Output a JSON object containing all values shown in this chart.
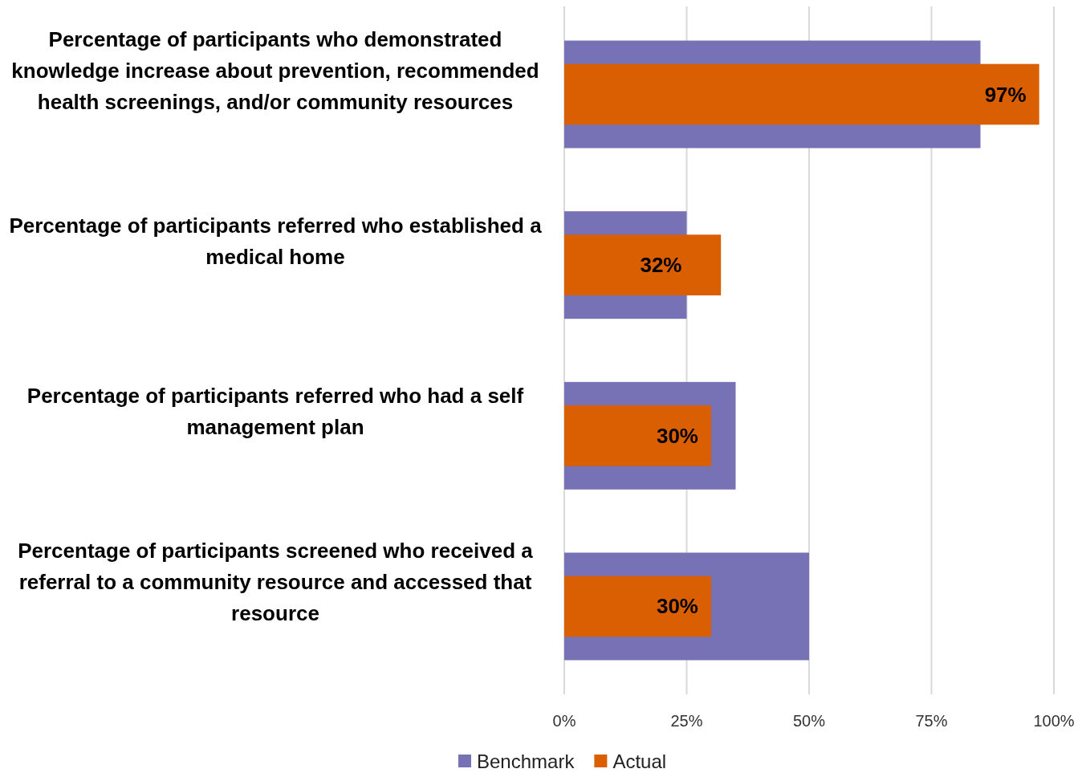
{
  "chart_data": {
    "type": "bar",
    "orientation": "horizontal",
    "categories": [
      "Percentage of participants who demonstrated knowledge increase about prevention, recommended health screenings, and/or community resources",
      "Percentage of participants referred who established a medical home",
      "Percentage of participants referred who had a self management plan",
      "Percentage of participants screened who received a referral to a community resource and accessed that resource"
    ],
    "series": [
      {
        "name": "Benchmark",
        "color": "#7772b5",
        "values": [
          85,
          25,
          35,
          50
        ]
      },
      {
        "name": "Actual",
        "color": "#d95f02",
        "values": [
          97,
          32,
          30,
          30
        ],
        "value_labels": [
          "97%",
          "32%",
          "30%",
          "30%"
        ]
      }
    ],
    "xlim": [
      0,
      100
    ],
    "xticks": [
      {
        "value": 0,
        "label": "0%"
      },
      {
        "value": 25,
        "label": "25%"
      },
      {
        "value": 50,
        "label": "50%"
      },
      {
        "value": 75,
        "label": "75%"
      },
      {
        "value": 100,
        "label": "100%"
      }
    ],
    "grid": "x",
    "legend": "bottom"
  }
}
